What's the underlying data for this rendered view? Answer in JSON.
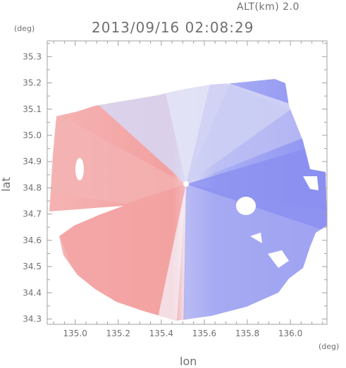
{
  "header": {
    "altitude_label": "ALT(km) 2.0",
    "timestamp": "2013/09/16 02:08:29",
    "y_unit": "(deg)",
    "x_unit": "(deg)"
  },
  "chart_data": {
    "type": "heatmap",
    "title": "2013/09/16 02:08:29",
    "subtitle": "ALT(km) 2.0",
    "xlabel": "lon",
    "ylabel": "lat",
    "x_unit": "(deg)",
    "y_unit": "(deg)",
    "xlim": [
      134.87,
      136.17
    ],
    "ylim": [
      34.28,
      35.36
    ],
    "xticks": [
      135.0,
      135.2,
      135.4,
      135.6,
      135.8,
      136.0
    ],
    "xtick_labels": [
      "135.0",
      "135.2",
      "135.4",
      "135.6",
      "135.8",
      "136.0"
    ],
    "yticks": [
      34.3,
      34.4,
      34.5,
      34.6,
      34.7,
      34.8,
      34.9,
      35.0,
      35.1,
      35.2,
      35.3
    ],
    "ytick_labels": [
      "34.3",
      "34.4",
      "34.5",
      "34.6",
      "34.7",
      "34.8",
      "34.9",
      "35.0",
      "35.1",
      "35.2",
      "35.3"
    ],
    "radar_center": {
      "lon": 135.52,
      "lat": 34.81
    },
    "grid": false,
    "colors": {
      "positive": "#f49a9a",
      "negative": "#8a8ef0",
      "neutral": "#f4f0f6",
      "axis": "#a0a0a0"
    }
  }
}
